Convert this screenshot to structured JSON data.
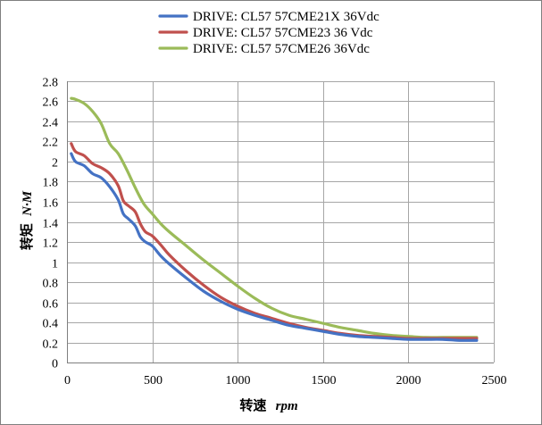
{
  "chart_data": {
    "type": "line",
    "title": "",
    "xlabel": {
      "main": "转速",
      "unit": "rpm"
    },
    "ylabel": {
      "main": "转矩",
      "unit": "N·M"
    },
    "xlim": [
      0,
      2500
    ],
    "ylim": [
      0,
      2.8
    ],
    "x_ticks": [
      0,
      500,
      1000,
      1500,
      2000,
      2500
    ],
    "y_ticks": [
      0,
      0.2,
      0.4,
      0.6,
      0.8,
      1,
      1.2,
      1.4,
      1.6,
      1.8,
      2,
      2.2,
      2.4,
      2.6,
      2.8
    ],
    "grid": "vertical-and-horizontal",
    "legend_position": "top",
    "series": [
      {
        "name": "DRIVE: CL57 57CME21X 36Vdc",
        "color": "#4472c4",
        "x": [
          25,
          50,
          100,
          150,
          200,
          250,
          300,
          330,
          360,
          400,
          430,
          460,
          500,
          550,
          600,
          700,
          800,
          900,
          1000,
          1100,
          1200,
          1300,
          1400,
          1500,
          1600,
          1700,
          1800,
          1900,
          2000,
          2100,
          2200,
          2300,
          2400
        ],
        "values": [
          2.08,
          2.0,
          1.96,
          1.88,
          1.84,
          1.75,
          1.62,
          1.48,
          1.43,
          1.36,
          1.25,
          1.2,
          1.16,
          1.06,
          0.98,
          0.84,
          0.71,
          0.61,
          0.53,
          0.47,
          0.42,
          0.37,
          0.34,
          0.31,
          0.28,
          0.26,
          0.25,
          0.24,
          0.23,
          0.23,
          0.23,
          0.22,
          0.22
        ]
      },
      {
        "name": "DRIVE: CL57 57CME23 36 Vdc",
        "color": "#c0504d",
        "x": [
          25,
          50,
          100,
          150,
          200,
          250,
          300,
          330,
          360,
          400,
          430,
          460,
          500,
          550,
          600,
          700,
          800,
          900,
          1000,
          1100,
          1200,
          1300,
          1400,
          1500,
          1600,
          1700,
          1800,
          1900,
          2000,
          2100,
          2200,
          2300,
          2400
        ],
        "values": [
          2.18,
          2.1,
          2.06,
          1.98,
          1.94,
          1.88,
          1.76,
          1.61,
          1.56,
          1.5,
          1.38,
          1.3,
          1.26,
          1.17,
          1.07,
          0.91,
          0.77,
          0.65,
          0.56,
          0.49,
          0.44,
          0.39,
          0.35,
          0.32,
          0.29,
          0.27,
          0.26,
          0.25,
          0.24,
          0.24,
          0.24,
          0.24,
          0.24
        ]
      },
      {
        "name": "DRIVE: CL57 57CME26 36Vdc",
        "color": "#9bbb59",
        "x": [
          25,
          50,
          100,
          150,
          200,
          250,
          300,
          350,
          400,
          450,
          500,
          550,
          600,
          700,
          800,
          900,
          1000,
          1100,
          1200,
          1300,
          1400,
          1500,
          1600,
          1700,
          1800,
          1900,
          2000,
          2100,
          2200,
          2300,
          2400
        ],
        "values": [
          2.63,
          2.62,
          2.58,
          2.5,
          2.38,
          2.18,
          2.08,
          1.92,
          1.74,
          1.58,
          1.48,
          1.38,
          1.3,
          1.16,
          1.02,
          0.89,
          0.76,
          0.64,
          0.54,
          0.47,
          0.43,
          0.39,
          0.35,
          0.32,
          0.29,
          0.27,
          0.26,
          0.25,
          0.25,
          0.25,
          0.25
        ]
      }
    ]
  }
}
